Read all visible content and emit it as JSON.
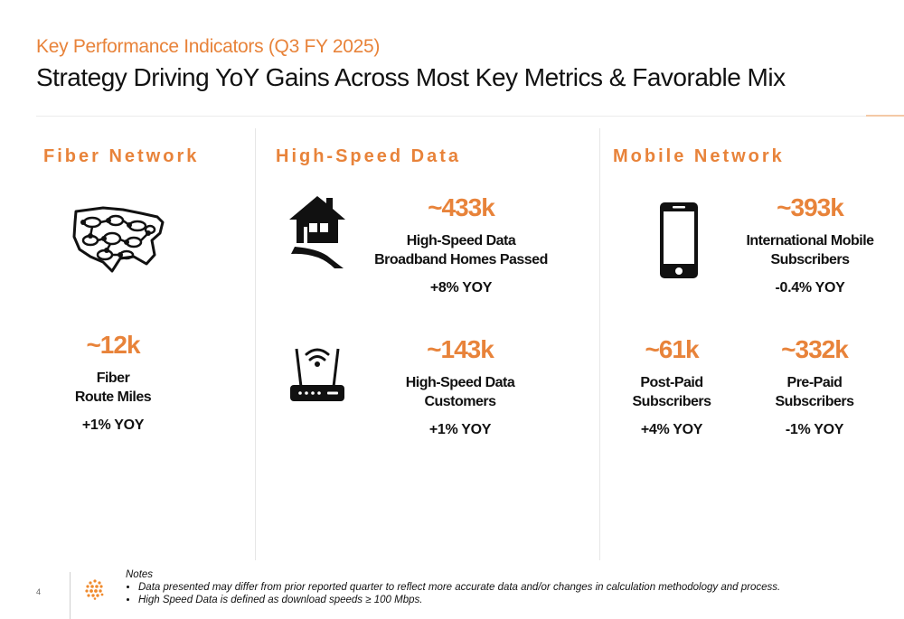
{
  "header": {
    "kicker": "Key Performance Indicators (Q3 FY 2025)",
    "title": "Strategy Driving YoY Gains Across Most Key Metrics & Favorable Mix"
  },
  "sections": {
    "fiber": {
      "title": "Fiber Network",
      "icon": "us-network-map-icon",
      "metric": {
        "value": "~12k",
        "label_line1": "Fiber",
        "label_line2": "Route Miles",
        "yoy": "+1% YOY"
      }
    },
    "hsd": {
      "title": "High-Speed Data",
      "homes": {
        "icon": "house-road-icon",
        "value": "~433k",
        "label_line1": "High-Speed Data",
        "label_line2": "Broadband Homes Passed",
        "yoy": "+8% YOY"
      },
      "customers": {
        "icon": "wifi-router-icon",
        "value": "~143k",
        "label_line1": "High-Speed Data",
        "label_line2": "Customers",
        "yoy": "+1% YOY"
      }
    },
    "mobile": {
      "title": "Mobile Network",
      "international": {
        "icon": "smartphone-icon",
        "value": "~393k",
        "label_line1": "International Mobile",
        "label_line2": "Subscribers",
        "yoy": "-0.4% YOY"
      },
      "postpaid": {
        "value": "~61k",
        "label_line1": "Post-Paid",
        "label_line2": "Subscribers",
        "yoy": "+4% YOY"
      },
      "prepaid": {
        "value": "~332k",
        "label_line1": "Pre-Paid",
        "label_line2": "Subscribers",
        "yoy": "-1% YOY"
      }
    }
  },
  "footer": {
    "page_number": "4",
    "notes_title": "Notes",
    "notes": [
      "Data presented may differ from prior reported quarter to reflect more accurate data and/or changes in calculation methodology and process.",
      "High Speed Data is defined as download speeds ≥ 100 Mbps."
    ]
  },
  "colors": {
    "accent": "#e8833a",
    "text": "#111111"
  }
}
